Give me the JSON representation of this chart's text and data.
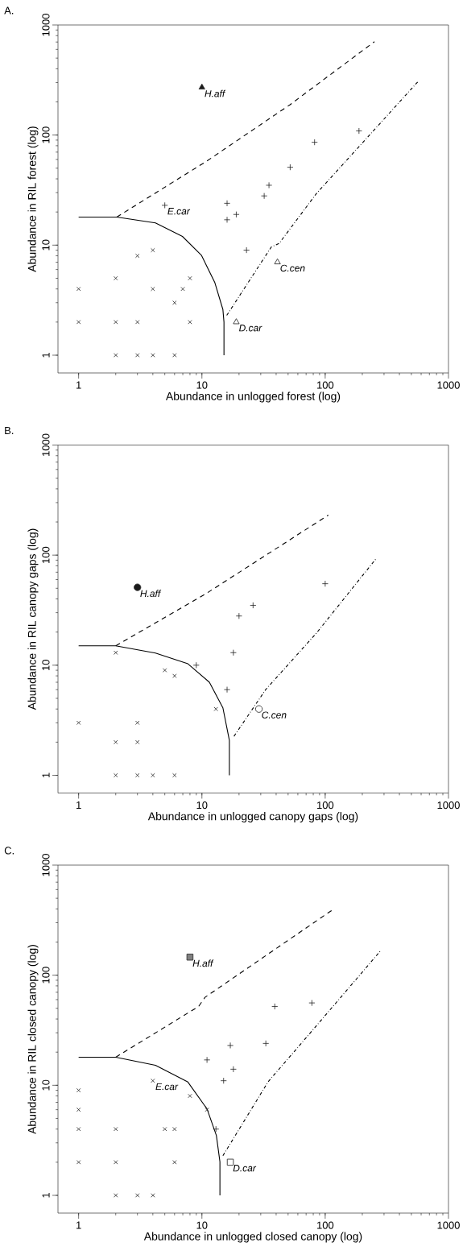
{
  "chart_data": [
    {
      "type": "scatter",
      "title": "A.",
      "xlabel": "Abundance in unlogged forest (log)",
      "ylabel": "Abundance in RIL forest (log)",
      "log": "xy",
      "xlim": [
        0.68,
        1000
      ],
      "ylim": [
        0.69,
        1000
      ],
      "xticks": [
        1,
        10,
        100,
        1000
      ],
      "yticks": [
        1,
        10,
        100,
        1000
      ],
      "series": [
        {
          "type": "line",
          "line_style": "solid",
          "marker": "none",
          "color": "#000000",
          "x": [
            1,
            2.04,
            4.2,
            6.95,
            9.9,
            12.7,
            14.8,
            15.1,
            15.1
          ],
          "values": [
            18,
            18,
            15.9,
            12,
            8.1,
            4.6,
            2.6,
            2.0,
            1
          ]
        },
        {
          "type": "line",
          "line_style": "dashed",
          "marker": "none",
          "color": "#000000",
          "x": [
            2.04,
            10.9,
            51.6,
            251
          ],
          "values": [
            18,
            57.8,
            188,
            705
          ]
        },
        {
          "type": "line",
          "line_style": "dashdot",
          "marker": "none",
          "color": "#000000",
          "x": [
            15.9,
            36.5,
            42.4,
            85,
            575
          ],
          "values": [
            2.3,
            9.6,
            10.4,
            29.5,
            312
          ]
        },
        {
          "marker": "cross",
          "color": "#222222",
          "x": [
            1,
            1,
            2,
            2,
            2,
            3,
            3,
            3,
            4,
            4,
            4,
            6,
            6,
            7,
            8,
            8
          ],
          "values": [
            4,
            2,
            5,
            2,
            1,
            8,
            2,
            1,
            9,
            4,
            1,
            3,
            1,
            4,
            5,
            2
          ]
        },
        {
          "marker": "plus",
          "color": "#222222",
          "x": [
            16,
            16,
            19,
            23,
            32,
            35,
            52,
            82,
            188
          ],
          "values": [
            24,
            17,
            19,
            9,
            28,
            35,
            51,
            86,
            109
          ]
        },
        {
          "name": "E.car",
          "marker": "plus",
          "color": "#222222",
          "x": [
            5
          ],
          "values": [
            23
          ]
        },
        {
          "name": "H.aff",
          "marker": "triangle",
          "color": "#1a1a1a",
          "x": [
            10
          ],
          "values": [
            271
          ]
        },
        {
          "name": "C.cen",
          "marker": "triangle",
          "color": "#ffffff",
          "x": [
            41
          ],
          "values": [
            7
          ]
        },
        {
          "name": "D.car",
          "marker": "triangle",
          "color": "#ffffff",
          "x": [
            19
          ],
          "values": [
            2
          ]
        }
      ]
    },
    {
      "type": "scatter",
      "title": "B.",
      "xlabel": "Abundance in unlogged canopy gaps (log)",
      "ylabel": "Abundance in RIL canopy gaps (log)",
      "log": "xy",
      "xlim": [
        0.68,
        1000
      ],
      "ylim": [
        0.69,
        1000
      ],
      "xticks": [
        1,
        10,
        100,
        1000
      ],
      "yticks": [
        1,
        10,
        100,
        1000
      ],
      "series": [
        {
          "type": "line",
          "line_style": "solid",
          "marker": "none",
          "color": "#000000",
          "x": [
            1,
            2,
            4.2,
            7.7,
            11.5,
            14.8,
            16.7,
            16.7
          ],
          "values": [
            15,
            15,
            12.9,
            10.3,
            7.0,
            4.1,
            2.08,
            1
          ]
        },
        {
          "type": "line",
          "line_style": "dashed",
          "marker": "none",
          "color": "#000000",
          "x": [
            2,
            10.9,
            106
          ],
          "values": [
            15,
            45,
            231
          ]
        },
        {
          "type": "line",
          "line_style": "dashdot",
          "marker": "none",
          "color": "#000000",
          "x": [
            18.2,
            32.9,
            85,
            256
          ],
          "values": [
            2.26,
            6.0,
            19.6,
            91.5
          ]
        },
        {
          "marker": "cross",
          "color": "#222222",
          "x": [
            2,
            5,
            6,
            13,
            1,
            3,
            2,
            3,
            2,
            3,
            4,
            6
          ],
          "values": [
            13,
            9,
            8,
            4,
            3,
            3,
            2,
            2,
            1,
            1,
            1,
            1
          ]
        },
        {
          "marker": "plus",
          "color": "#222222",
          "x": [
            9,
            18,
            16,
            20,
            26,
            100
          ],
          "values": [
            10,
            13,
            6,
            28,
            35,
            55
          ]
        },
        {
          "name": "H.aff",
          "marker": "circle",
          "color": "#1a1a1a",
          "x": [
            3
          ],
          "values": [
            51
          ]
        },
        {
          "name": "C.cen",
          "marker": "circle",
          "color": "#ffffff",
          "x": [
            29
          ],
          "values": [
            4
          ]
        }
      ]
    },
    {
      "type": "scatter",
      "title": "C.",
      "xlabel": "Abundance in unlogged closed canopy (log)",
      "ylabel": "Abundance in RIL closed canopy (log)",
      "log": "xy",
      "xlim": [
        0.68,
        1000
      ],
      "ylim": [
        0.69,
        1000
      ],
      "xticks": [
        1,
        10,
        100,
        1000
      ],
      "yticks": [
        1,
        10,
        100,
        1000
      ],
      "series": [
        {
          "type": "line",
          "line_style": "solid",
          "marker": "none",
          "color": "#000000",
          "x": [
            1,
            2,
            4.2,
            7.7,
            11,
            13.1,
            14,
            14
          ],
          "values": [
            18,
            18,
            15.2,
            10.7,
            6.1,
            3.5,
            2.02,
            1
          ]
        },
        {
          "type": "line",
          "line_style": "dashed",
          "marker": "none",
          "color": "#000000",
          "x": [
            2,
            9.4,
            10.6,
            118
          ],
          "values": [
            18,
            52,
            63,
            401
          ]
        },
        {
          "type": "line",
          "line_style": "dashdot",
          "marker": "none",
          "color": "#000000",
          "x": [
            14.8,
            34.5,
            66,
            283
          ],
          "values": [
            2.29,
            10.8,
            25,
            168
          ]
        },
        {
          "marker": "cross",
          "color": "#222222",
          "x": [
            1,
            1,
            1,
            2,
            5,
            6,
            8,
            11,
            1,
            2,
            6,
            2,
            3,
            4
          ],
          "values": [
            9,
            6,
            4,
            4,
            4,
            4,
            8,
            6,
            2,
            2,
            2,
            1,
            1,
            1
          ]
        },
        {
          "marker": "plus",
          "color": "#222222",
          "x": [
            13,
            11,
            17,
            18,
            15,
            33,
            39,
            78
          ],
          "values": [
            4,
            17,
            23,
            14,
            11,
            24,
            52,
            56
          ]
        },
        {
          "name": "E.car",
          "marker": "cross",
          "color": "#222222",
          "x": [
            4
          ],
          "values": [
            11
          ]
        },
        {
          "name": "H.aff",
          "marker": "square",
          "color": "#808080",
          "x": [
            8
          ],
          "values": [
            146
          ]
        },
        {
          "name": "D.car",
          "marker": "square",
          "color": "#ffffff",
          "x": [
            17
          ],
          "values": [
            2
          ]
        }
      ]
    }
  ]
}
